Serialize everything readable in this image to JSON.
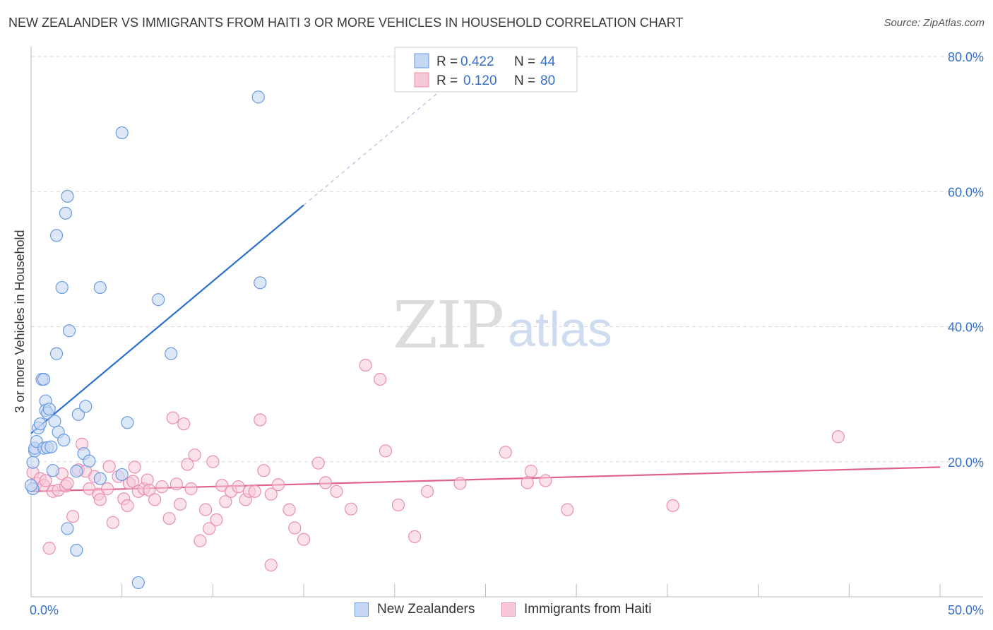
{
  "header": {
    "title": "NEW ZEALANDER VS IMMIGRANTS FROM HAITI 3 OR MORE VEHICLES IN HOUSEHOLD CORRELATION CHART",
    "source": "Source: ZipAtlas.com"
  },
  "watermark": {
    "zip": "ZIP",
    "atlas": "atlas"
  },
  "colors": {
    "blue": "#6b9be0",
    "blue_fill": "#c4d7f3",
    "blue_line": "#2a6fd1",
    "pink": "#e98fae",
    "pink_fill": "#f7c9d8",
    "pink_line": "#e0608e",
    "value_text": "#3570c8",
    "grid": "#d8d8d8"
  },
  "legend_top": {
    "rows": [
      {
        "r_label": "R =",
        "r_value": "0.422",
        "n_label": "N =",
        "n_value": "44"
      },
      {
        "r_label": "R =",
        "r_value": "0.120",
        "n_label": "N =",
        "n_value": "80"
      }
    ]
  },
  "legend_bottom": {
    "items": [
      {
        "label": "New Zealanders"
      },
      {
        "label": "Immigrants from Haiti"
      }
    ]
  },
  "chart_data": {
    "type": "scatter",
    "title": "NEW ZEALANDER VS IMMIGRANTS FROM HAITI 3 OR MORE VEHICLES IN HOUSEHOLD CORRELATION CHART",
    "xlabel": "",
    "ylabel": "3 or more Vehicles in Household",
    "xlim": [
      0,
      50
    ],
    "ylim": [
      0,
      80
    ],
    "x_tick_labels": [
      {
        "value": 0,
        "label": "0.0%"
      },
      {
        "value": 50,
        "label": "50.0%"
      }
    ],
    "y_tick_labels": [
      {
        "value": 20,
        "label": "20.0%"
      },
      {
        "value": 40,
        "label": "40.0%"
      },
      {
        "value": 60,
        "label": "60.0%"
      },
      {
        "value": 80,
        "label": "80.0%"
      }
    ],
    "x_minor_ticks": [
      5,
      10,
      15,
      20,
      25,
      30,
      35,
      40,
      45,
      50
    ],
    "grid": true,
    "series": [
      {
        "name": "New Zealanders",
        "color": "#6b9be0",
        "R": 0.422,
        "N": 44,
        "trend": {
          "x0": 0,
          "y0": 24.2,
          "x1": 15,
          "y1": 58.0,
          "dash_to_x": 24
        },
        "points": [
          [
            0.1,
            16.0
          ],
          [
            0.1,
            19.9
          ],
          [
            0.2,
            21.6
          ],
          [
            0.2,
            22.0
          ],
          [
            0.3,
            23.0
          ],
          [
            0.4,
            25.0
          ],
          [
            0.5,
            25.6
          ],
          [
            0.6,
            32.2
          ],
          [
            0.7,
            22.0
          ],
          [
            0.7,
            32.2
          ],
          [
            0.8,
            29.0
          ],
          [
            0.8,
            27.6
          ],
          [
            0.9,
            22.1
          ],
          [
            0.9,
            27.2
          ],
          [
            1.0,
            27.8
          ],
          [
            1.1,
            22.2
          ],
          [
            1.2,
            18.7
          ],
          [
            1.3,
            26.0
          ],
          [
            1.4,
            36.0
          ],
          [
            1.4,
            53.5
          ],
          [
            1.5,
            24.4
          ],
          [
            1.7,
            45.8
          ],
          [
            1.8,
            23.2
          ],
          [
            1.9,
            56.8
          ],
          [
            2.0,
            59.3
          ],
          [
            2.0,
            10.1
          ],
          [
            2.1,
            39.4
          ],
          [
            2.5,
            6.9
          ],
          [
            2.5,
            18.6
          ],
          [
            2.6,
            27.0
          ],
          [
            2.9,
            21.2
          ],
          [
            3.0,
            28.2
          ],
          [
            3.2,
            20.1
          ],
          [
            3.8,
            17.5
          ],
          [
            3.8,
            45.8
          ],
          [
            5.0,
            68.7
          ],
          [
            5.0,
            18.1
          ],
          [
            5.3,
            25.8
          ],
          [
            5.9,
            2.1
          ],
          [
            7.0,
            44.0
          ],
          [
            7.7,
            36.0
          ],
          [
            12.5,
            74.0
          ],
          [
            12.6,
            46.5
          ],
          [
            0.0,
            16.5
          ]
        ]
      },
      {
        "name": "Immigrants from Haiti",
        "color": "#e98fae",
        "R": 0.12,
        "N": 80,
        "trend": {
          "x0": 0,
          "y0": 15.6,
          "x1": 50,
          "y1": 19.2
        },
        "points": [
          [
            0.1,
            18.4
          ],
          [
            0.3,
            16.8
          ],
          [
            0.5,
            17.5
          ],
          [
            0.7,
            16.5
          ],
          [
            0.8,
            17.2
          ],
          [
            1.0,
            7.2
          ],
          [
            1.2,
            15.6
          ],
          [
            1.5,
            15.8
          ],
          [
            1.7,
            18.2
          ],
          [
            1.9,
            16.4
          ],
          [
            2.0,
            16.8
          ],
          [
            2.3,
            11.9
          ],
          [
            2.6,
            18.8
          ],
          [
            2.8,
            22.6
          ],
          [
            3.0,
            18.6
          ],
          [
            3.2,
            16.0
          ],
          [
            3.5,
            17.8
          ],
          [
            3.7,
            15.2
          ],
          [
            3.8,
            14.4
          ],
          [
            4.2,
            16.0
          ],
          [
            4.3,
            19.3
          ],
          [
            4.5,
            11.0
          ],
          [
            4.8,
            17.8
          ],
          [
            5.1,
            14.5
          ],
          [
            5.3,
            13.5
          ],
          [
            5.4,
            16.8
          ],
          [
            5.6,
            17.1
          ],
          [
            5.7,
            19.2
          ],
          [
            5.9,
            15.6
          ],
          [
            6.2,
            16.0
          ],
          [
            6.4,
            17.3
          ],
          [
            6.5,
            15.8
          ],
          [
            6.8,
            14.4
          ],
          [
            7.2,
            16.3
          ],
          [
            7.6,
            11.6
          ],
          [
            7.8,
            26.5
          ],
          [
            8.0,
            16.7
          ],
          [
            8.2,
            13.7
          ],
          [
            8.4,
            25.6
          ],
          [
            8.6,
            19.6
          ],
          [
            8.8,
            16.0
          ],
          [
            9.0,
            21.0
          ],
          [
            9.3,
            8.3
          ],
          [
            9.6,
            12.9
          ],
          [
            9.8,
            10.1
          ],
          [
            10.0,
            20.0
          ],
          [
            10.2,
            11.4
          ],
          [
            10.5,
            16.5
          ],
          [
            10.7,
            14.1
          ],
          [
            11.0,
            15.6
          ],
          [
            11.4,
            16.3
          ],
          [
            11.8,
            14.4
          ],
          [
            12.0,
            15.6
          ],
          [
            12.3,
            15.6
          ],
          [
            12.6,
            26.2
          ],
          [
            12.8,
            18.7
          ],
          [
            13.2,
            15.2
          ],
          [
            13.6,
            16.6
          ],
          [
            14.2,
            12.9
          ],
          [
            14.5,
            10.2
          ],
          [
            15.0,
            8.5
          ],
          [
            15.8,
            19.8
          ],
          [
            16.2,
            16.9
          ],
          [
            16.8,
            15.6
          ],
          [
            17.6,
            13.0
          ],
          [
            18.4,
            34.3
          ],
          [
            19.2,
            32.2
          ],
          [
            19.5,
            21.6
          ],
          [
            20.2,
            13.6
          ],
          [
            21.8,
            15.6
          ],
          [
            23.6,
            16.8
          ],
          [
            26.1,
            21.4
          ],
          [
            27.3,
            16.9
          ],
          [
            27.5,
            18.6
          ],
          [
            28.3,
            17.2
          ],
          [
            29.5,
            12.9
          ],
          [
            35.3,
            13.5
          ],
          [
            44.4,
            23.7
          ],
          [
            21.1,
            8.9
          ],
          [
            13.2,
            4.7
          ]
        ]
      }
    ]
  }
}
